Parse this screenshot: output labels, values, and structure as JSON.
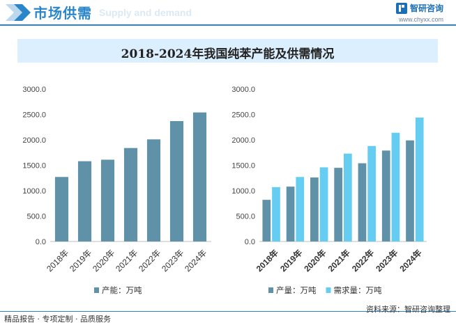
{
  "header": {
    "title": "市场供需",
    "subtitle": "Supply and demand",
    "brand_name": "智研咨询",
    "brand_url": "www.chyxx.com"
  },
  "title": "2018-2024年我国纯苯产能及供需情况",
  "colors": {
    "bar_dark": "#5f91a8",
    "bar_light": "#66cdf2",
    "accent": "#2a86c8"
  },
  "chart_data": [
    {
      "type": "bar",
      "categories": [
        "2018年",
        "2019年",
        "2020年",
        "2021年",
        "2022年",
        "2023年",
        "2024年"
      ],
      "series": [
        {
          "name": "产能：万吨",
          "values": [
            1270,
            1580,
            1610,
            1840,
            2010,
            2370,
            2540
          ]
        }
      ],
      "ylim": [
        0,
        3000
      ],
      "yticks": [
        "0.0",
        "500.0",
        "1000.0",
        "1500.0",
        "2000.0",
        "2500.0",
        "3000.0"
      ],
      "legend": "bottom",
      "grid": false
    },
    {
      "type": "bar",
      "categories": [
        "2018年",
        "2019年",
        "2020年",
        "2021年",
        "2022年",
        "2023年",
        "2024年"
      ],
      "series": [
        {
          "name": "产量：万吨",
          "values": [
            820,
            1080,
            1260,
            1450,
            1540,
            1790,
            1990
          ]
        },
        {
          "name": "需求量：万吨",
          "values": [
            1070,
            1270,
            1460,
            1730,
            1880,
            2140,
            2440
          ]
        }
      ],
      "ylim": [
        0,
        3000
      ],
      "yticks": [
        "0.0",
        "500.0",
        "1000.0",
        "1500.0",
        "2000.0",
        "2500.0",
        "3000.0"
      ],
      "legend": "bottom",
      "grid": false
    }
  ],
  "footer": {
    "left": "精品报告 · 专项定制 · 品质服务",
    "source": "资料来源：智研咨询整理"
  }
}
